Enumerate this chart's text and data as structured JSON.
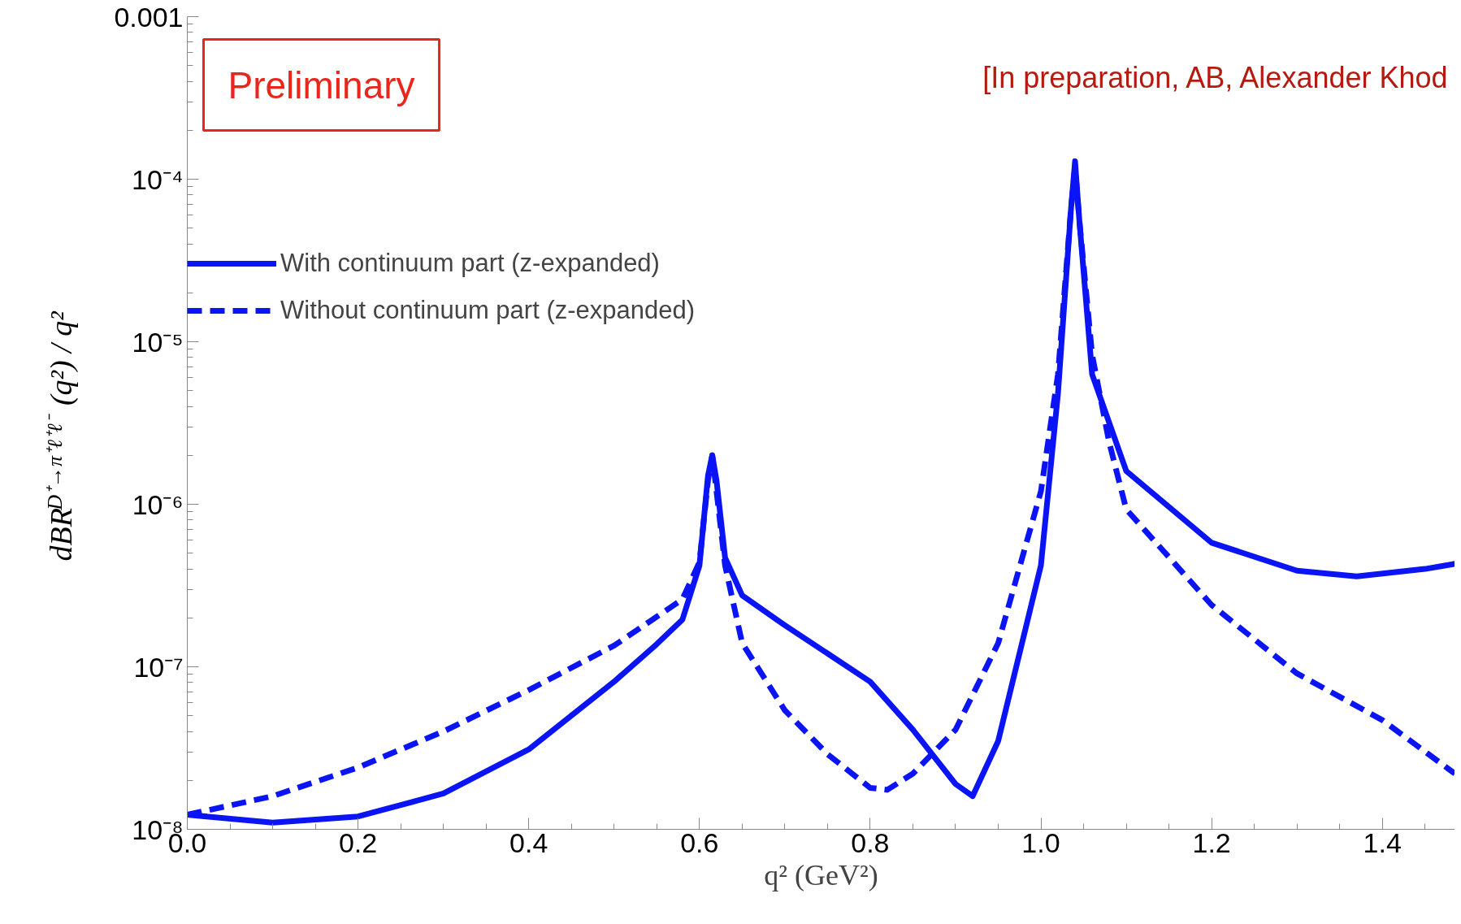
{
  "chart_data": {
    "type": "line",
    "xlabel": "q² (GeV²)",
    "ylabel": "dBR$^{D⁺→π⁺ℓ⁺ℓ⁻}$(q²) / q²",
    "log": "y",
    "xlim": [
      0,
      1.485
    ],
    "ylim": [
      1e-08,
      0.001
    ],
    "xticks": [
      {
        "value": 0,
        "label": "0.0"
      },
      0.2,
      0.4,
      0.6,
      0.8,
      {
        "value": 1,
        "label": "1.0"
      },
      1.2,
      1.4
    ],
    "yticks": [
      {
        "value": 1e-08,
        "label": "10⁻⁸"
      },
      {
        "value": 1e-07,
        "label": "10⁻⁷"
      },
      {
        "value": 1e-06,
        "label": "10⁻⁶"
      },
      {
        "value": 1e-05,
        "label": "10⁻⁵"
      },
      {
        "value": 0.0001,
        "label": "10⁻⁴"
      },
      0.001
    ],
    "grid": false,
    "legend": "top left",
    "marker": "none",
    "annotations": [
      "Preliminary",
      "[In preparation, AB, Alexander Khod"
    ],
    "series": [
      {
        "name": "With continuum part (z-expanded)",
        "color": "#0a14f5",
        "line_style": "solid",
        "x": [
          0,
          0.1,
          0.2,
          0.3,
          0.4,
          0.5,
          0.55,
          0.58,
          0.6,
          0.61,
          0.615,
          0.62,
          0.63,
          0.65,
          0.7,
          0.8,
          0.85,
          0.9,
          0.92,
          0.95,
          1.0,
          1.02,
          1.035,
          1.04,
          1.045,
          1.06,
          1.1,
          1.2,
          1.3,
          1.37,
          1.45,
          1.485
        ],
        "values": [
          1.23e-08,
          1.1e-08,
          1.2e-08,
          1.66e-08,
          3.1e-08,
          8.1e-08,
          1.38e-07,
          1.95e-07,
          4.2e-07,
          1.5e-06,
          2e-06,
          1.4e-06,
          4.7e-07,
          2.75e-07,
          1.8e-07,
          8.1e-08,
          4.1e-08,
          1.9e-08,
          1.6e-08,
          3.5e-08,
          4.2e-07,
          4.8e-06,
          6.3e-05,
          0.000129,
          5.6e-05,
          6.3e-06,
          1.6e-06,
          5.8e-07,
          3.9e-07,
          3.6e-07,
          4e-07,
          4.3e-07
        ]
      },
      {
        "name": "Without continuum part (z-expanded)",
        "color": "#0a14f5",
        "line_style": "dashed",
        "x": [
          0,
          0.1,
          0.2,
          0.3,
          0.4,
          0.5,
          0.58,
          0.6,
          0.61,
          0.615,
          0.62,
          0.63,
          0.65,
          0.7,
          0.75,
          0.8,
          0.82,
          0.85,
          0.9,
          0.95,
          1.0,
          1.02,
          1.035,
          1.04,
          1.045,
          1.06,
          1.08,
          1.1,
          1.2,
          1.3,
          1.4,
          1.485
        ],
        "values": [
          1.23e-08,
          1.6e-08,
          2.4e-08,
          4e-08,
          7.2e-08,
          1.35e-07,
          2.6e-07,
          4.4e-07,
          1.4e-06,
          2e-06,
          1.2e-06,
          4.2e-07,
          1.4e-07,
          5.4e-08,
          2.9e-08,
          1.8e-08,
          1.75e-08,
          2.2e-08,
          4.1e-08,
          1.4e-07,
          1.2e-06,
          6.3e-06,
          6.3e-05,
          0.000118,
          5.6e-05,
          8.3e-06,
          2.4e-06,
          9.3e-07,
          2.4e-07,
          9.1e-08,
          4.7e-08,
          2.2e-08
        ]
      }
    ]
  }
}
